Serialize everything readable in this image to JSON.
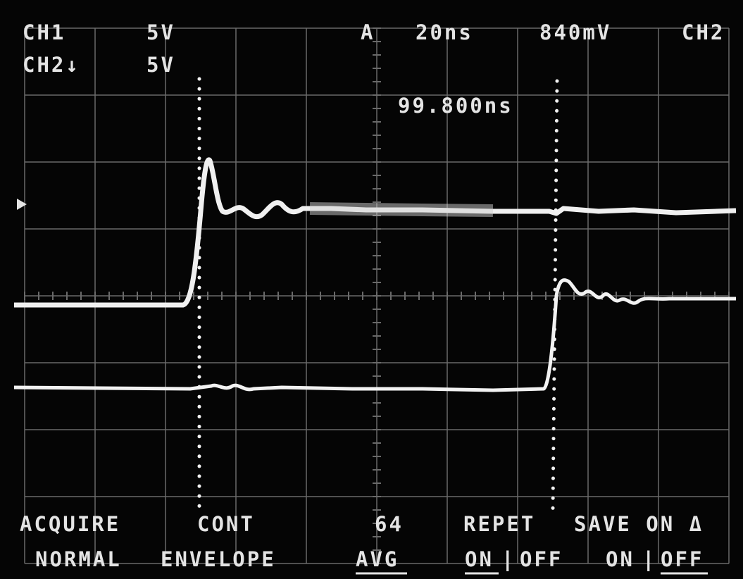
{
  "readout": {
    "ch1_label": "CH1",
    "ch1_scale": "5V",
    "ch2_label": "CH2↓",
    "ch2_scale": "5V",
    "trigger_source": "A",
    "timebase": "20ns",
    "trigger_level": "840mV",
    "trigger_channel": "CH2",
    "cursor_delta": "99.800ns"
  },
  "menu": {
    "acquire": {
      "title": "ACQUIRE",
      "value": "NORMAL"
    },
    "mode": {
      "title": "CONT",
      "value": "ENVELOPE"
    },
    "average": {
      "title": "64",
      "value": "AVG"
    },
    "repet": {
      "title": "REPET",
      "on": "ON",
      "separator": "|",
      "off": "OFF"
    },
    "save": {
      "title": "SAVE ON Δ",
      "on": "ON",
      "separator": "|",
      "off": "OFF"
    }
  }
}
